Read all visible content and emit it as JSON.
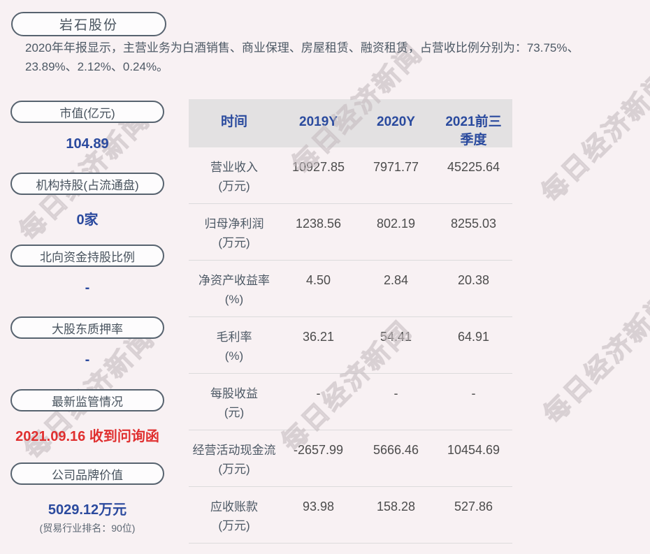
{
  "page": {
    "background": "#f8f1f3",
    "watermark_text": "每日经济新闻"
  },
  "header": {
    "title": "岩石股份",
    "description": "2020年年报显示，主营业务为白酒销售、商业保理、房屋租赁、融资租赁，占营收比例分别为：73.75%、23.89%、2.12%、0.24%。"
  },
  "sidebar": {
    "items": [
      {
        "label": "市值(亿元)",
        "value": "104.89"
      },
      {
        "label": "机构持股(占流通盘)",
        "value": "0家"
      },
      {
        "label": "北向资金持股比例",
        "value": "-"
      },
      {
        "label": "大股东质押率",
        "value": "-"
      },
      {
        "label": "最新监管情况",
        "value": "2021.09.16 收到问询函"
      },
      {
        "label": "公司品牌价值",
        "value": "5029.12万元",
        "subtext": "(贸易行业排名：90位)"
      }
    ]
  },
  "table": {
    "header": [
      "时间",
      "2019Y",
      "2020Y",
      "2021前三\n季度"
    ],
    "rows": [
      {
        "name": "营业收入",
        "unit": "(万元)",
        "values": [
          "10927.85",
          "7971.77",
          "45225.64"
        ]
      },
      {
        "name": "归母净利润",
        "unit": "(万元)",
        "values": [
          "1238.56",
          "802.19",
          "8255.03"
        ]
      },
      {
        "name": "净资产收益率",
        "unit": "(%)",
        "values": [
          "4.50",
          "2.84",
          "20.38"
        ]
      },
      {
        "name": "毛利率",
        "unit": "(%)",
        "values": [
          "36.21",
          "54.41",
          "64.91"
        ]
      },
      {
        "name": "每股收益",
        "unit": "(元)",
        "values": [
          "-",
          "-",
          "-"
        ]
      },
      {
        "name": "经营活动现金流",
        "unit": "(万元)",
        "values": [
          "-2657.99",
          "5666.46",
          "10454.69"
        ]
      },
      {
        "name": "应收账款",
        "unit": "(万元)",
        "values": [
          "93.98",
          "158.28",
          "527.86"
        ]
      }
    ]
  },
  "colors": {
    "background": "#f8f1f3",
    "pill_border": "#57636f",
    "label_text": "#48535e",
    "value_blue": "#2b4a9e",
    "alert_red": "#e03030",
    "table_header_bg": "#e3e1e2",
    "table_header_text": "#2a4a9e",
    "table_number_text": "#4c4c4c",
    "row_divider": "#dcdbdc",
    "watermark": "#ddd6d9"
  },
  "chart_data": {
    "type": "table",
    "title": "岩石股份",
    "columns": [
      "时间",
      "2019Y",
      "2020Y",
      "2021前三季度"
    ],
    "rows": [
      {
        "metric": "营业收入(万元)",
        "values": [
          10927.85,
          7971.77,
          45225.64
        ]
      },
      {
        "metric": "归母净利润(万元)",
        "values": [
          1238.56,
          802.19,
          8255.03
        ]
      },
      {
        "metric": "净资产收益率(%)",
        "values": [
          4.5,
          2.84,
          20.38
        ]
      },
      {
        "metric": "毛利率(%)",
        "values": [
          36.21,
          54.41,
          64.91
        ]
      },
      {
        "metric": "每股收益(元)",
        "values": [
          null,
          null,
          null
        ]
      },
      {
        "metric": "经营活动现金流(万元)",
        "values": [
          -2657.99,
          5666.46,
          10454.69
        ]
      },
      {
        "metric": "应收账款(万元)",
        "values": [
          93.98,
          158.28,
          527.86
        ]
      }
    ],
    "key_stats": [
      {
        "label": "市值(亿元)",
        "value": "104.89"
      },
      {
        "label": "机构持股(占流通盘)",
        "value": "0家"
      },
      {
        "label": "北向资金持股比例",
        "value": "-"
      },
      {
        "label": "大股东质押率",
        "value": "-"
      },
      {
        "label": "最新监管情况",
        "value": "2021.09.16 收到问询函"
      },
      {
        "label": "公司品牌价值",
        "value": "5029.12万元",
        "note": "(贸易行业排名：90位)"
      }
    ],
    "annotations": [
      "2020年年报显示，主营业务为白酒销售、商业保理、房屋租赁、融资租赁，占营收比例分别为：73.75%、23.89%、2.12%、0.24%。"
    ]
  }
}
